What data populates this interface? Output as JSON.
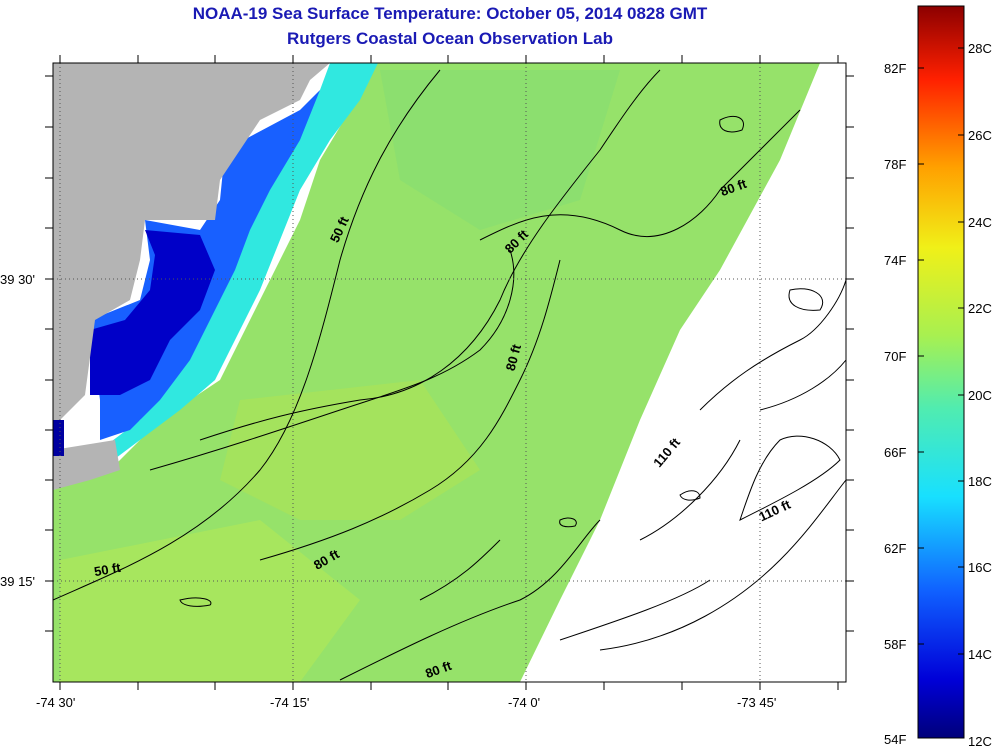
{
  "title": "NOAA-19 Sea Surface Temperature:  October 05, 2014 0828 GMT",
  "subtitle": "Rutgers Coastal Ocean Observation Lab",
  "longitude_ticks": [
    "-74 30'",
    "-74 15'",
    "-74 0'",
    "-73 45'"
  ],
  "latitude_ticks": [
    "39 30'",
    "39 15'"
  ],
  "contour_labels": [
    "50 ft",
    "50 ft",
    "80 ft",
    "80 ft",
    "80 ft",
    "80 ft",
    "80 ft",
    "110 ft",
    "110 ft"
  ],
  "colorbar": {
    "fahrenheit_labels": [
      "82F",
      "78F",
      "74F",
      "70F",
      "66F",
      "62F",
      "58F",
      "54F"
    ],
    "celsius_labels": [
      "28C",
      "26C",
      "24C",
      "22C",
      "20C",
      "18C",
      "16C",
      "14C",
      "12C"
    ],
    "range_c": [
      12,
      29.5
    ]
  },
  "colors": {
    "land": "#b4b4b4",
    "no_data": "#ffffff",
    "water_main": "#96e26a",
    "title": "#1a1ab4"
  }
}
